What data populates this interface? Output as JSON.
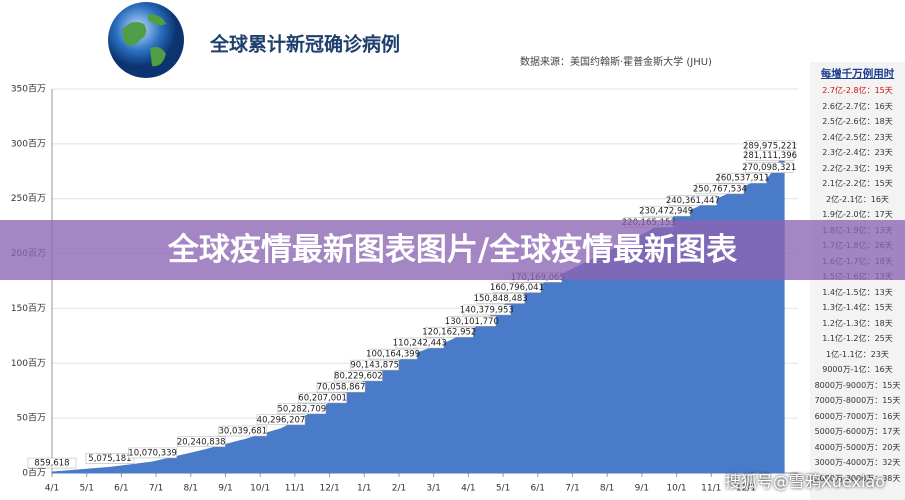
{
  "header": {
    "title": "全球累计新冠确诊病例",
    "source": "数据来源：美国约翰斯·霍普金斯大学 (JHU)"
  },
  "chart_data": {
    "type": "area",
    "x": [
      0,
      1.67,
      2.9,
      4.3,
      5.5,
      6.6,
      7.2,
      7.8,
      8.33,
      8.83,
      9.3,
      9.83,
      10.6,
      11.45,
      12.1,
      12.53,
      12.93,
      13.4,
      14,
      17.2,
      17.7,
      18.47,
      19.25,
      19.9,
      20.67,
      20.9,
      21.1
    ],
    "values": [
      0.859618,
      5.075181,
      10.070339,
      20.240838,
      30.039681,
      40.296207,
      50.282709,
      60.207001,
      70.058867,
      80.229602,
      90.143875,
      100.164399,
      110.242443,
      120.162952,
      130.10177,
      140.379953,
      150.848483,
      160.796041,
      170.169065,
      220.165153,
      230.472949,
      240.361447,
      250.767534,
      260.537911,
      270.098321,
      281.111396,
      289.975221
    ],
    "value_labels": [
      "859,618",
      "5,075,181",
      "10,070,339",
      "20,240,838",
      "30,039,681",
      "40,296,207",
      "50,282,709",
      "60,207,001",
      "70,058,867",
      "80,229,602",
      "90,143,875",
      "100,164,399",
      "110,242,443",
      "120,162,952",
      "130,101,770",
      "140,379,953",
      "150,848,483",
      "160,796,041",
      "170,169,065",
      "220,165,153",
      "230,472,949",
      "240,361,447",
      "250,767,534",
      "260,537,911",
      "270,098,321",
      "281,111,396",
      "289,975,221"
    ],
    "color": "#4a7bc8",
    "xlim": [
      0,
      21.5
    ],
    "xticks": [
      {
        "value": 0,
        "label": "4/1"
      },
      {
        "value": 1,
        "label": "5/1"
      },
      {
        "value": 2,
        "label": "6/1"
      },
      {
        "value": 3,
        "label": "7/1"
      },
      {
        "value": 4,
        "label": "8/1"
      },
      {
        "value": 5,
        "label": "9/1"
      },
      {
        "value": 6,
        "label": "10/1"
      },
      {
        "value": 7,
        "label": "11/1"
      },
      {
        "value": 8,
        "label": "12/1"
      },
      {
        "value": 9,
        "label": "1/1"
      },
      {
        "value": 10,
        "label": "2/1"
      },
      {
        "value": 11,
        "label": "3/1"
      },
      {
        "value": 12,
        "label": "4/1"
      },
      {
        "value": 13,
        "label": "5/1"
      },
      {
        "value": 14,
        "label": "6/1"
      },
      {
        "value": 15,
        "label": "7/1"
      },
      {
        "value": 16,
        "label": "8/1"
      },
      {
        "value": 17,
        "label": "9/1"
      },
      {
        "value": 18,
        "label": "10/1"
      },
      {
        "value": 19,
        "label": "11/1"
      },
      {
        "value": 20,
        "label": "12/1"
      }
    ],
    "ylim": [
      0,
      350
    ],
    "yticks": [
      {
        "value": 0,
        "label": "0百万"
      },
      {
        "value": 50,
        "label": "50百万"
      },
      {
        "value": 100,
        "label": "100百万"
      },
      {
        "value": 150,
        "label": "150百万"
      },
      {
        "value": 200,
        "label": "200百万"
      },
      {
        "value": 250,
        "label": "250百万"
      },
      {
        "value": 300,
        "label": "300百万"
      },
      {
        "value": 350,
        "label": "350百万"
      }
    ],
    "grid": true
  },
  "side_table": {
    "title": "每增千万例用时",
    "rows": [
      [
        "2.7亿-2.8亿：",
        "15天"
      ],
      [
        "2.6亿-2.7亿：",
        "16天"
      ],
      [
        "2.5亿-2.6亿：",
        "18天"
      ],
      [
        "2.4亿-2.5亿：",
        "23天"
      ],
      [
        "2.3亿-2.4亿：",
        "23天"
      ],
      [
        "2.2亿-2.3亿：",
        "19天"
      ],
      [
        "2.1亿-2.2亿：",
        "15天"
      ],
      [
        "2亿-2.1亿：",
        "16天"
      ],
      [
        "1.9亿-2.0亿：",
        "17天"
      ],
      [
        "1.8亿-1.9亿：",
        "13天"
      ],
      [
        "1.7亿-1.8亿：",
        "26天"
      ],
      [
        "1.6亿-1.7亿：",
        "18天"
      ],
      [
        "1.5亿-1.6亿：",
        "13天"
      ],
      [
        "1.4亿-1.5亿：",
        "13天"
      ],
      [
        "1.3亿-1.4亿：",
        "15天"
      ],
      [
        "1.2亿-1.3亿：",
        "18天"
      ],
      [
        "1.1亿-1.2亿：",
        "25天"
      ],
      [
        "1亿-1.1亿：",
        "23天"
      ],
      [
        "9000万-1亿：",
        "16天"
      ],
      [
        "8000万-9000万：",
        "15天"
      ],
      [
        "7000万-8000万：",
        "15天"
      ],
      [
        "6000万-7000万：",
        "16天"
      ],
      [
        "5000万-6000万：",
        "17天"
      ],
      [
        "4000万-5000万：",
        "20天"
      ],
      [
        "3000万-4000万：",
        "32天"
      ],
      [
        "2000万-3000万：",
        "38天"
      ]
    ]
  },
  "banner": "全球疫情最新图表图片/全球疫情最新图表",
  "watermark": "搜狐号@雪鸦Xuexiao"
}
